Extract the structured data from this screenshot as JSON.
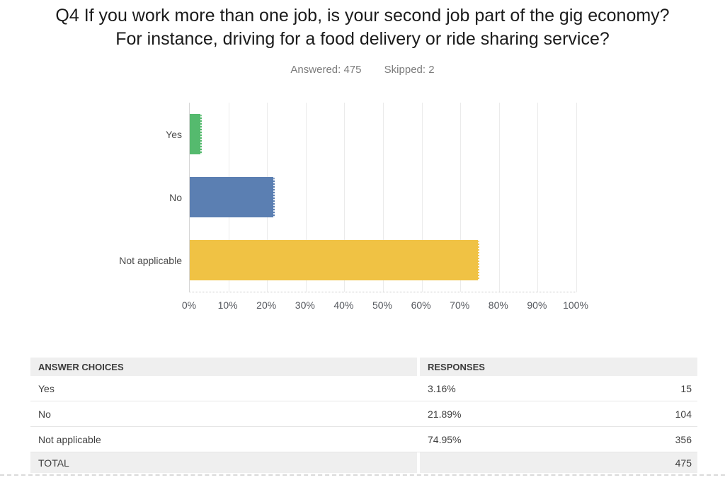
{
  "page": {
    "title": "Q4 If you work more than one job, is your second job part of the gig economy? For instance, driving for a food delivery or ride sharing service?",
    "answered_text": "Answered: 475",
    "skipped_text": "Skipped: 2"
  },
  "chart_data": {
    "type": "bar",
    "orientation": "horizontal",
    "title": "Q4 If you work more than one job, is your second job part of the gig economy? For instance, driving for a food delivery or ride sharing service?",
    "answered": 475,
    "skipped": 2,
    "categories": [
      "Yes",
      "No",
      "Not applicable"
    ],
    "values": [
      3.16,
      21.89,
      74.95
    ],
    "counts": [
      15,
      104,
      356
    ],
    "bar_colors": [
      "#55ba6e",
      "#5b7fb2",
      "#f0c244"
    ],
    "xlabel": "",
    "ylabel": "",
    "xlim": [
      0,
      100
    ],
    "x_ticks": [
      "0%",
      "10%",
      "20%",
      "30%",
      "40%",
      "50%",
      "60%",
      "70%",
      "80%",
      "90%",
      "100%"
    ],
    "grid": true,
    "legend": false
  },
  "table": {
    "headers": [
      "ANSWER CHOICES",
      "RESPONSES"
    ],
    "rows": [
      {
        "choice": "Yes",
        "percent": "3.16%",
        "count": "15"
      },
      {
        "choice": "No",
        "percent": "21.89%",
        "count": "104"
      },
      {
        "choice": "Not applicable",
        "percent": "74.95%",
        "count": "356"
      }
    ],
    "total_label": "TOTAL",
    "total_count": "475"
  }
}
